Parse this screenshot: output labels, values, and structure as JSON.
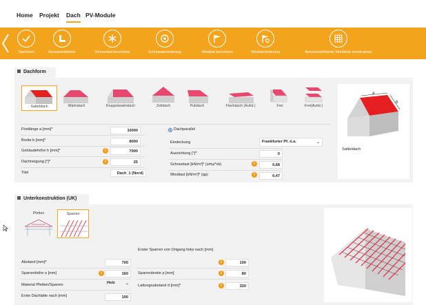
{
  "nav": {
    "items": [
      "Home",
      "Projekt",
      "Dach",
      "PV-Module"
    ],
    "active": "Dach"
  },
  "toolbar": {
    "items": [
      {
        "label": "Speichern",
        "icon": "check-icon"
      },
      {
        "label": "Benutzerdefiniert",
        "icon": "custom-roof-icon"
      },
      {
        "label": "Schneelast berechnen",
        "icon": "snowflake-icon"
      },
      {
        "label": "Schneeabminderung",
        "icon": "snow-reduction-icon"
      },
      {
        "label": "Windlast berechnen",
        "icon": "wind-flag-icon"
      },
      {
        "label": "Windabminderung",
        "icon": "wind-reduction-icon"
      },
      {
        "label": "Benutzerdefinierte Störfläche konstruieren",
        "icon": "grid-obstacle-icon"
      }
    ]
  },
  "dachform": {
    "title": "Dachform",
    "roofs": [
      {
        "label": "Satteldach",
        "selected": true
      },
      {
        "label": "Walmdach"
      },
      {
        "label": "Kruppelwalmdach"
      },
      {
        "label": "Zeltdach"
      },
      {
        "label": "Pultdach"
      },
      {
        "label": "Flachdach (Aufst.)"
      },
      {
        "label": "Frei"
      },
      {
        "label": "Frei(Aufst.)"
      }
    ],
    "fields_left": [
      {
        "label": "Firstlänge a [mm]*",
        "value": "10000"
      },
      {
        "label": "Breite b [mm]*",
        "value": "8000"
      },
      {
        "label": "Gebäudehöhe h [mm]*",
        "value": "7000",
        "info": true
      },
      {
        "label": "Dachneigung [°]*",
        "value": "25",
        "info": true
      },
      {
        "label": "Titel",
        "value": "Dach_1 (Nord)"
      }
    ],
    "dachparallel": "Dachparallel",
    "eindeckung": {
      "label": "Eindeckung",
      "value": "Frankfurter Pf. ö.a."
    },
    "fields_right": [
      {
        "label": "Ausrichtung [°]*",
        "value": "0"
      },
      {
        "label": "Schneelast [kN/m²]* (si=μi*sk)",
        "value": "0,68",
        "info": true
      },
      {
        "label": "Windlast [kN/m²]* (qp)",
        "value": "0,47",
        "info": true
      }
    ],
    "preview_label": "Satteldach",
    "preview_dim_a": "a",
    "preview_dim_b": "b"
  },
  "uk": {
    "title": "Unterkonstruktion (UK)",
    "types": [
      {
        "label": "Pfetten"
      },
      {
        "label": "Sparren",
        "selected": true
      }
    ],
    "fields_left": [
      {
        "label": "Abstand [mm]*",
        "value": "700"
      },
      {
        "label": "Sparrenhöhe o [mm]",
        "value": "160",
        "info": true
      },
      {
        "label": "Material Pfetten/Sparren",
        "value": "Holz"
      },
      {
        "label": "Erste Dachlatte nach [mm]",
        "value": "100"
      }
    ],
    "first_rafter_label": "Erster Sparren von Ortgang links nach [mm]",
    "fields_right": [
      {
        "label": "",
        "value": "100",
        "info": true
      },
      {
        "label": "Sparrenbreite p [mm]",
        "value": "80",
        "info": true
      },
      {
        "label": "Lattungsabstand d [mm]*",
        "value": "320",
        "info": true
      }
    ]
  },
  "colors": {
    "accent": "#f4a41c",
    "roof": "#e8476e",
    "roof_selected": "#e51f1f"
  }
}
